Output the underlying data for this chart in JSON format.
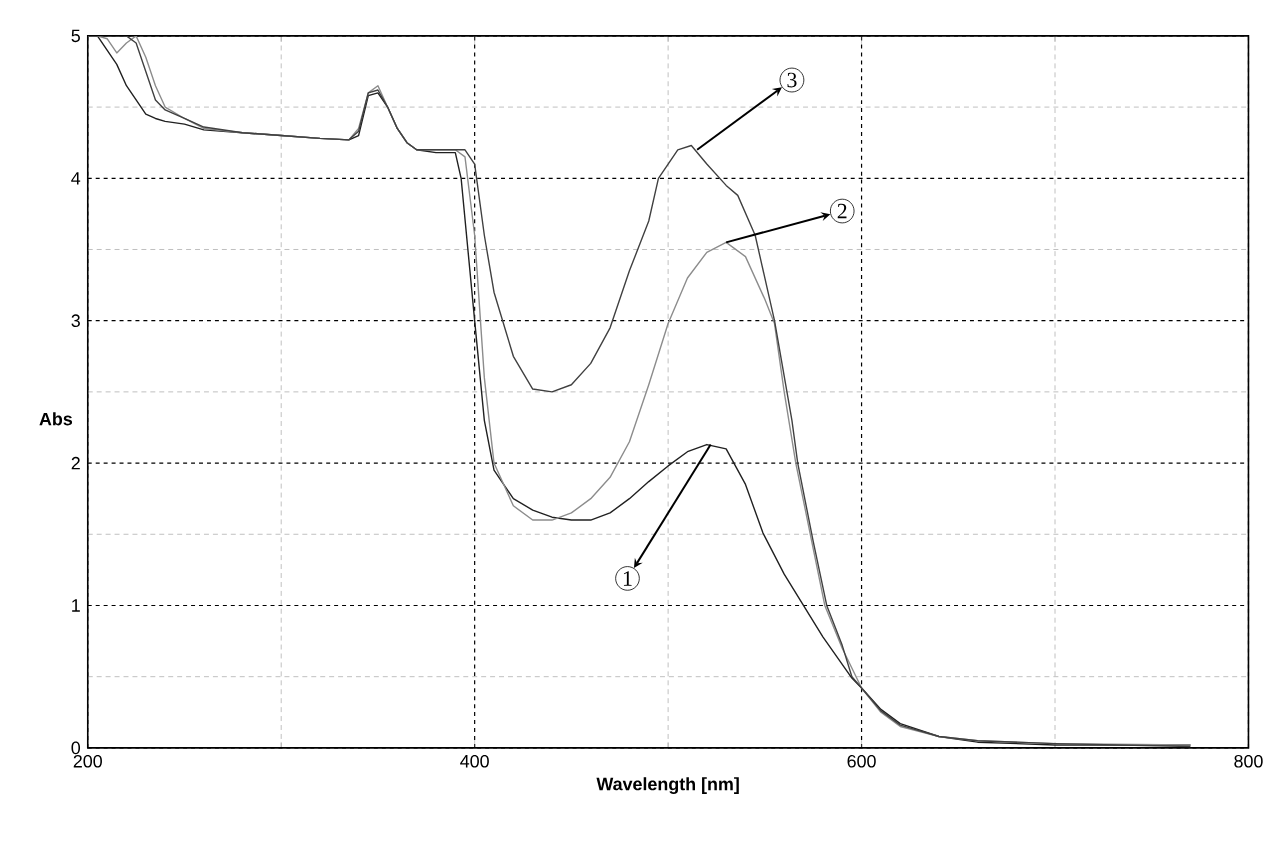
{
  "chart_data": {
    "type": "line",
    "xlabel": "Wavelength [nm]",
    "ylabel": "Abs",
    "xlim": [
      200,
      800
    ],
    "ylim": [
      0,
      5
    ],
    "xticks": [
      200,
      {
        "value": 300,
        "label": null
      },
      400,
      {
        "value": 500,
        "label": null
      },
      600,
      {
        "value": 700,
        "label": null
      },
      800
    ],
    "yticks": [
      0,
      {
        "value": 0.5,
        "label": null
      },
      1,
      {
        "value": 1.5,
        "label": null
      },
      2,
      {
        "value": 2.5,
        "label": null
      },
      3,
      {
        "value": 3.5,
        "label": null
      },
      4,
      {
        "value": 4.5,
        "label": null
      },
      5
    ],
    "grid": true,
    "marker": "none",
    "line_style": "solid",
    "series": [
      {
        "color": "#202020",
        "x": [
          200,
          205,
          210,
          215,
          220,
          225,
          230,
          235,
          240,
          250,
          260,
          280,
          300,
          320,
          335,
          340,
          345,
          350,
          355,
          360,
          365,
          370,
          380,
          390,
          393,
          400,
          405,
          410,
          420,
          430,
          440,
          450,
          460,
          470,
          480,
          490,
          500,
          510,
          520,
          530,
          540,
          549,
          560,
          570,
          580,
          595,
          600,
          610,
          620,
          640,
          660,
          700,
          770
        ],
        "values": [
          5,
          5,
          4.9,
          4.8,
          4.65,
          4.55,
          4.45,
          4.42,
          4.4,
          4.38,
          4.34,
          4.32,
          4.3,
          4.28,
          4.27,
          4.3,
          4.58,
          4.6,
          4.5,
          4.35,
          4.25,
          4.2,
          4.18,
          4.18,
          4.0,
          3.0,
          2.3,
          1.95,
          1.75,
          1.67,
          1.62,
          1.6,
          1.6,
          1.65,
          1.75,
          1.87,
          1.98,
          2.08,
          2.13,
          2.1,
          1.85,
          1.51,
          1.22,
          1.0,
          0.78,
          0.49,
          0.42,
          0.27,
          0.17,
          0.08,
          0.04,
          0.02,
          0.02
        ]
      },
      {
        "color": "#8c8c8c",
        "x": [
          200,
          205,
          210,
          215,
          220,
          225,
          230,
          235,
          240,
          250,
          260,
          280,
          300,
          320,
          335,
          340,
          345,
          350,
          355,
          360,
          365,
          370,
          380,
          390,
          395,
          400,
          405,
          410,
          420,
          430,
          440,
          450,
          460,
          470,
          480,
          490,
          500,
          510,
          520,
          530,
          540,
          550,
          555,
          560,
          566,
          575,
          581,
          590,
          600,
          610,
          620,
          640,
          660,
          700,
          770
        ],
        "values": [
          5,
          5,
          4.98,
          4.88,
          4.95,
          5,
          4.85,
          4.65,
          4.5,
          4.42,
          4.35,
          4.32,
          4.3,
          4.28,
          4.27,
          4.35,
          4.6,
          4.65,
          4.5,
          4.35,
          4.25,
          4.2,
          4.2,
          4.2,
          4.15,
          3.6,
          2.6,
          2.0,
          1.7,
          1.6,
          1.6,
          1.65,
          1.75,
          1.9,
          2.15,
          2.55,
          2.98,
          3.3,
          3.48,
          3.55,
          3.45,
          3.15,
          2.98,
          2.5,
          2.0,
          1.4,
          1.0,
          0.7,
          0.42,
          0.25,
          0.15,
          0.08,
          0.05,
          0.03,
          0.02
        ]
      },
      {
        "color": "#404040",
        "x": [
          200,
          205,
          210,
          215,
          220,
          225,
          230,
          235,
          240,
          250,
          260,
          280,
          300,
          320,
          335,
          340,
          345,
          350,
          355,
          360,
          365,
          370,
          380,
          390,
          395,
          400,
          405,
          410,
          420,
          430,
          440,
          450,
          460,
          470,
          480,
          490,
          495,
          505,
          512,
          520,
          530,
          536,
          545,
          555,
          564,
          567,
          575,
          582,
          590,
          595,
          600,
          610,
          620,
          640,
          660,
          700,
          770
        ],
        "values": [
          5,
          5,
          5,
          5,
          5,
          4.95,
          4.75,
          4.55,
          4.48,
          4.42,
          4.36,
          4.32,
          4.3,
          4.28,
          4.27,
          4.33,
          4.6,
          4.62,
          4.5,
          4.35,
          4.25,
          4.2,
          4.2,
          4.2,
          4.2,
          4.1,
          3.6,
          3.2,
          2.75,
          2.52,
          2.5,
          2.55,
          2.7,
          2.95,
          3.35,
          3.7,
          4.0,
          4.2,
          4.23,
          4.1,
          3.95,
          3.88,
          3.6,
          3.0,
          2.3,
          2.0,
          1.45,
          1.0,
          0.72,
          0.5,
          0.42,
          0.26,
          0.16,
          0.08,
          0.05,
          0.03,
          0.01
        ]
      }
    ],
    "annotations": [
      {
        "text": "1",
        "x": 522,
        "y": 2.13
      },
      {
        "text": "2",
        "x": 530,
        "y": 3.55
      },
      {
        "text": "3",
        "x": 515,
        "y": 4.2
      }
    ]
  }
}
